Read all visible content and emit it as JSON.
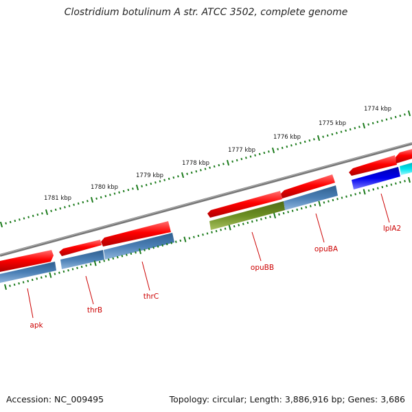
{
  "title": "Clostridium botulinum A str. ATCC 3502, complete genome",
  "accession": "Accession: NC_009495",
  "summary": "Topology: circular; Length: 3,886,916 bp; Genes: 3,686",
  "colors": {
    "backbone": "#7a7a7a",
    "cds_forward": "#ff0000",
    "rna_or_cds_other": "#4a7fb5",
    "highlight_green": "#6b8e23",
    "highlight_blue": "#0000ee",
    "highlight_cyan": "#00e5ee",
    "ticks": "#1a7a1a",
    "gene_label": "#cc0000"
  },
  "scale_labels": [
    "1781 kbp",
    "1780 kbp",
    "1779 kbp",
    "1778 kbp",
    "1777 kbp",
    "1776 kbp",
    "1775 kbp",
    "1774 kbp"
  ],
  "gene_labels": [
    "apk",
    "thrB",
    "thrC",
    "opuBB",
    "opuBA",
    "lplA2"
  ]
}
